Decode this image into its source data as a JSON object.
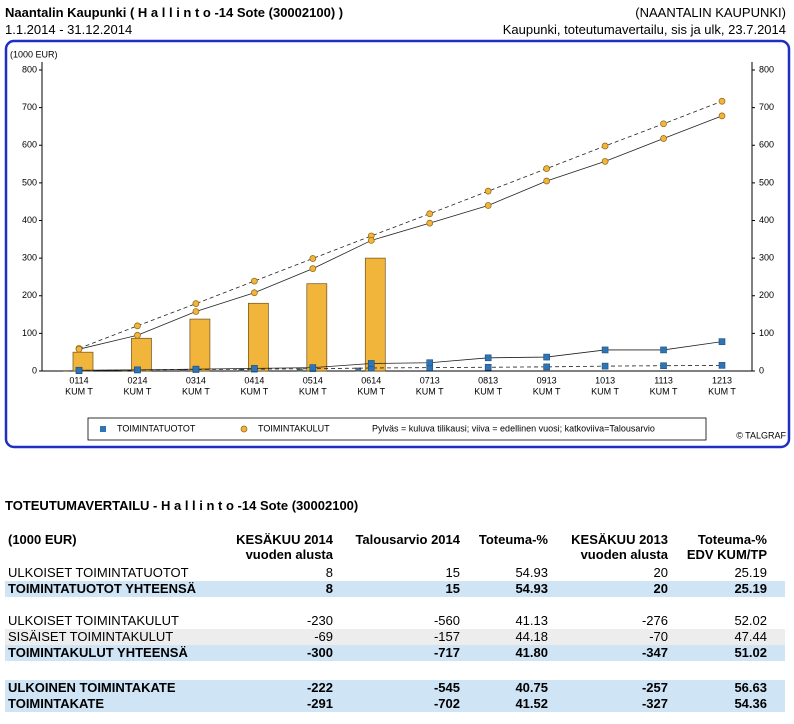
{
  "header": {
    "title": "Naantalin Kaupunki ( H a l l i n t o -14 Sote (30002100) )",
    "org": "(NAANTALIN KAUPUNKI)",
    "period": "1.1.2014 - 31.12.2014",
    "subtitle": "Kaupunki, toteutumavertailu, sis ja ulk, 23.7.2014"
  },
  "chart_data": {
    "type": "bar-line",
    "y_label": "(1000 EUR)",
    "categories": [
      [
        "0114",
        "KUM T"
      ],
      [
        "0214",
        "KUM T"
      ],
      [
        "0314",
        "KUM T"
      ],
      [
        "0414",
        "KUM T"
      ],
      [
        "0514",
        "KUM T"
      ],
      [
        "0614",
        "KUM T"
      ],
      [
        "0713",
        "KUM T"
      ],
      [
        "0813",
        "KUM T"
      ],
      [
        "0913",
        "KUM T"
      ],
      [
        "1013",
        "KUM T"
      ],
      [
        "1113",
        "KUM T"
      ],
      [
        "1213",
        "KUM T"
      ]
    ],
    "ylim": [
      0,
      800
    ],
    "yticks": [
      0,
      100,
      200,
      300,
      400,
      500,
      600,
      700,
      800
    ],
    "y2lim": [
      0,
      800
    ],
    "y2ticks": [
      0,
      100,
      200,
      300,
      400,
      500,
      600,
      700,
      800
    ],
    "series": [
      {
        "name": "TOIMINTATUOTOT",
        "color": "#2f74b5",
        "marker": "square",
        "bars": [
          1,
          3,
          4,
          5,
          6,
          8,
          null,
          null,
          null,
          null,
          null,
          null
        ],
        "line": [
          2,
          3,
          5,
          7,
          9,
          20,
          22,
          35,
          37,
          56,
          56,
          78
        ],
        "dashed": [
          1,
          3,
          4,
          5,
          6,
          8,
          9,
          10,
          11,
          13,
          14,
          15
        ]
      },
      {
        "name": "TOIMINTAKULUT",
        "color": "#f2b53c",
        "marker": "circle",
        "bars": [
          50,
          87,
          138,
          180,
          232,
          300,
          null,
          null,
          null,
          null,
          null,
          null
        ],
        "line": [
          58,
          95,
          158,
          208,
          272,
          347,
          393,
          440,
          505,
          557,
          618,
          678
        ],
        "dashed": [
          60,
          120,
          179,
          239,
          299,
          359,
          418,
          478,
          538,
          598,
          657,
          717
        ]
      }
    ],
    "note": "Pylväs = kuluva tilikausi; viiva = edellinen vuosi; katkoviiva=Talousarvio",
    "credit": "© TALGRAF"
  },
  "table": {
    "title": "TOTEUTUMAVERTAILU - H a l l i n t o -14 Sote (30002100)",
    "columns": [
      "(1000 EUR)",
      "KESÄKUU 2014\nvuoden alusta",
      "Talousarvio 2014",
      "Toteuma-%",
      "KESÄKUU 2013\nvuoden alusta",
      "Toteuma-%\nEDV KUM/TP"
    ],
    "rows": [
      [
        "ULKOISET TOIMINTATUOTOT",
        "8",
        "15",
        "54.93",
        "20",
        "25.19"
      ],
      [
        "TOIMINTATUOTOT YHTEENSÄ",
        "8",
        "15",
        "54.93",
        "20",
        "25.19"
      ],
      [
        "ULKOISET TOIMINTAKULUT",
        "-230",
        "-560",
        "41.13",
        "-276",
        "52.02"
      ],
      [
        "SISÄISET TOIMINTAKULUT",
        "-69",
        "-157",
        "44.18",
        "-70",
        "47.44"
      ],
      [
        "TOIMINTAKULUT YHTEENSÄ",
        "-300",
        "-717",
        "41.80",
        "-347",
        "51.02"
      ],
      [
        "ULKOINEN TOIMINTAKATE",
        "-222",
        "-545",
        "40.75",
        "-257",
        "56.63"
      ],
      [
        "TOIMINTAKATE",
        "-291",
        "-702",
        "41.52",
        "-327",
        "54.36"
      ]
    ]
  }
}
